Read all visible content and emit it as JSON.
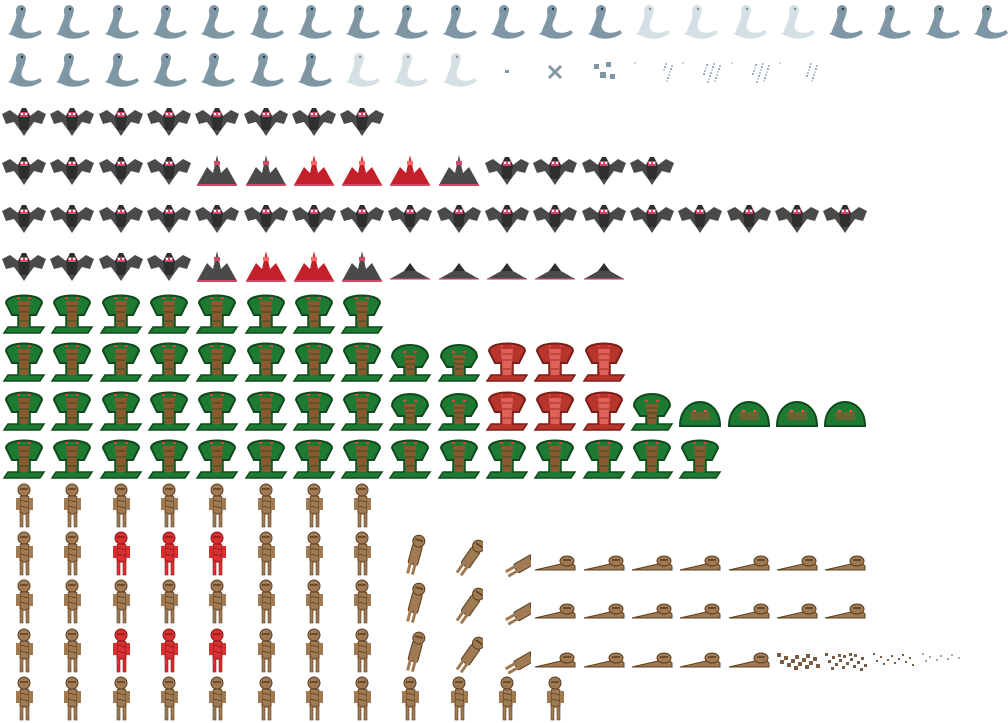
{
  "sheet": {
    "background": "#ffffff",
    "colors": {
      "ghost": "#7f97a5",
      "ghost_light": "#b4c7d1",
      "bat": "#4a4a4a",
      "bat_dark": "#2f2f2f",
      "bat_accent": "#d14a6a",
      "bat_red": "#c4202c",
      "cobra": "#1e7a32",
      "cobra_dark": "#0f4a1c",
      "cobra_belly": "#8a5a2e",
      "cobra_red": "#b8352c",
      "mummy": "#a07a52",
      "mummy_dark": "#5a3e22",
      "mummy_red": "#d83030",
      "debris": "#6a4a30"
    },
    "rows": [
      {
        "creature": "ghost-serpent",
        "frames": [
          "n",
          "n",
          "n",
          "n",
          "n",
          "n",
          "n",
          "n",
          "n",
          "n",
          "n",
          "n",
          "n",
          "f",
          "f",
          "f",
          "f",
          "n",
          "n",
          "n",
          "n"
        ]
      },
      {
        "creature": "ghost-serpent",
        "frames": [
          "n",
          "n",
          "n",
          "n",
          "n",
          "n",
          "n",
          "f",
          "f",
          "f",
          "d1",
          "d2",
          "d3",
          "p1",
          "p2",
          "p2",
          "p3"
        ]
      },
      {
        "creature": "bat",
        "frames": [
          "n",
          "n",
          "n",
          "n",
          "n",
          "n",
          "n",
          "n"
        ]
      },
      {
        "creature": "bat",
        "frames": [
          "n",
          "n",
          "n",
          "n",
          "w",
          "w",
          "wr",
          "wr",
          "wr",
          "w",
          "n",
          "n",
          "n",
          "n"
        ]
      },
      {
        "creature": "bat",
        "frames": [
          "n",
          "n",
          "n",
          "n",
          "n",
          "n",
          "n",
          "n",
          "n",
          "n",
          "n",
          "n",
          "n",
          "n",
          "n",
          "n",
          "n",
          "n"
        ]
      },
      {
        "creature": "bat",
        "frames": [
          "n",
          "n",
          "n",
          "n",
          "w",
          "wr",
          "wr",
          "w",
          "d",
          "d",
          "d",
          "d",
          "d"
        ]
      },
      {
        "creature": "cobra",
        "frames": [
          "n",
          "n",
          "n",
          "n",
          "n",
          "n",
          "n",
          "n"
        ]
      },
      {
        "creature": "cobra",
        "frames": [
          "n",
          "n",
          "n",
          "n",
          "n",
          "n",
          "n",
          "n",
          "l",
          "l",
          "r",
          "r",
          "r"
        ]
      },
      {
        "creature": "cobra",
        "frames": [
          "n",
          "n",
          "n",
          "n",
          "n",
          "n",
          "n",
          "n",
          "l",
          "l",
          "r",
          "r",
          "r",
          "l",
          "c",
          "c",
          "c",
          "c"
        ]
      },
      {
        "creature": "cobra",
        "frames": [
          "n",
          "n",
          "n",
          "n",
          "n",
          "n",
          "n",
          "n",
          "n",
          "n",
          "n",
          "n",
          "n",
          "n",
          "n"
        ]
      },
      {
        "creature": "mummy",
        "frames": [
          "n",
          "n",
          "n",
          "n",
          "n",
          "n",
          "n",
          "n"
        ]
      },
      {
        "creature": "mummy",
        "frames": [
          "n",
          "n",
          "r",
          "r",
          "r",
          "n",
          "n",
          "n",
          "f1",
          "f2",
          "f3",
          "f4",
          "f5",
          "f5",
          "f5",
          "f5",
          "f5",
          "f5"
        ]
      },
      {
        "creature": "mummy",
        "frames": [
          "n",
          "n",
          "n",
          "n",
          "n",
          "n",
          "n",
          "n",
          "f1",
          "f2",
          "f3",
          "f4",
          "f5",
          "f5",
          "f5",
          "f5",
          "f5",
          "f5"
        ]
      },
      {
        "creature": "mummy",
        "frames": [
          "n",
          "n",
          "r",
          "r",
          "r",
          "n",
          "n",
          "n",
          "f1",
          "f2",
          "f3",
          "f4",
          "f5",
          "f5",
          "f5",
          "f5",
          "x1",
          "x2",
          "x3",
          "x4"
        ]
      },
      {
        "creature": "mummy",
        "frames": [
          "n",
          "n",
          "n",
          "n",
          "n",
          "n",
          "n",
          "n",
          "n",
          "n",
          "n",
          "n"
        ]
      }
    ]
  }
}
